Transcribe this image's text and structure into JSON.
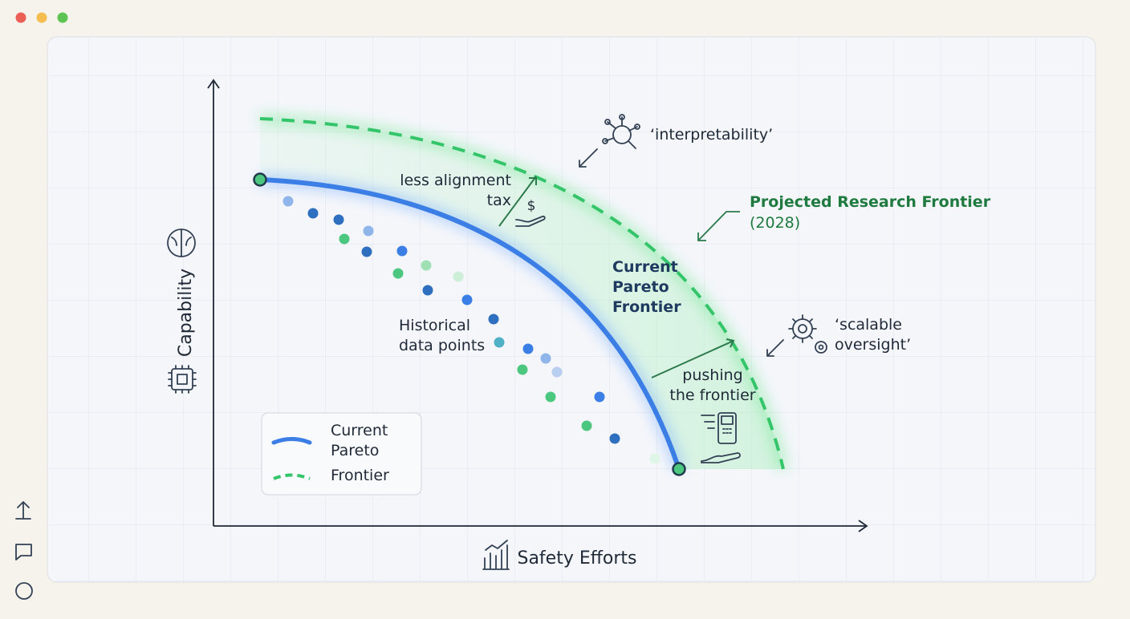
{
  "chart": {
    "y_axis_label": "Capability",
    "x_axis_label": "Safety Efforts",
    "annotations": {
      "interpretability": "‘interpretability’",
      "projected_frontier": [
        "Projected Research Frontier",
        "(2028)"
      ],
      "less_alignment_tax": [
        "less alignment",
        "tax"
      ],
      "dollar": "$",
      "current_frontier": [
        "Current",
        "Pareto",
        "Frontier"
      ],
      "historical": [
        "Historical",
        "data points"
      ],
      "scalable_oversight": [
        "‘scalable",
        "oversight’"
      ],
      "pushing": [
        "pushing",
        "the frontier"
      ]
    },
    "legend": [
      "Current",
      "Pareto",
      "Frontier"
    ]
  }
}
